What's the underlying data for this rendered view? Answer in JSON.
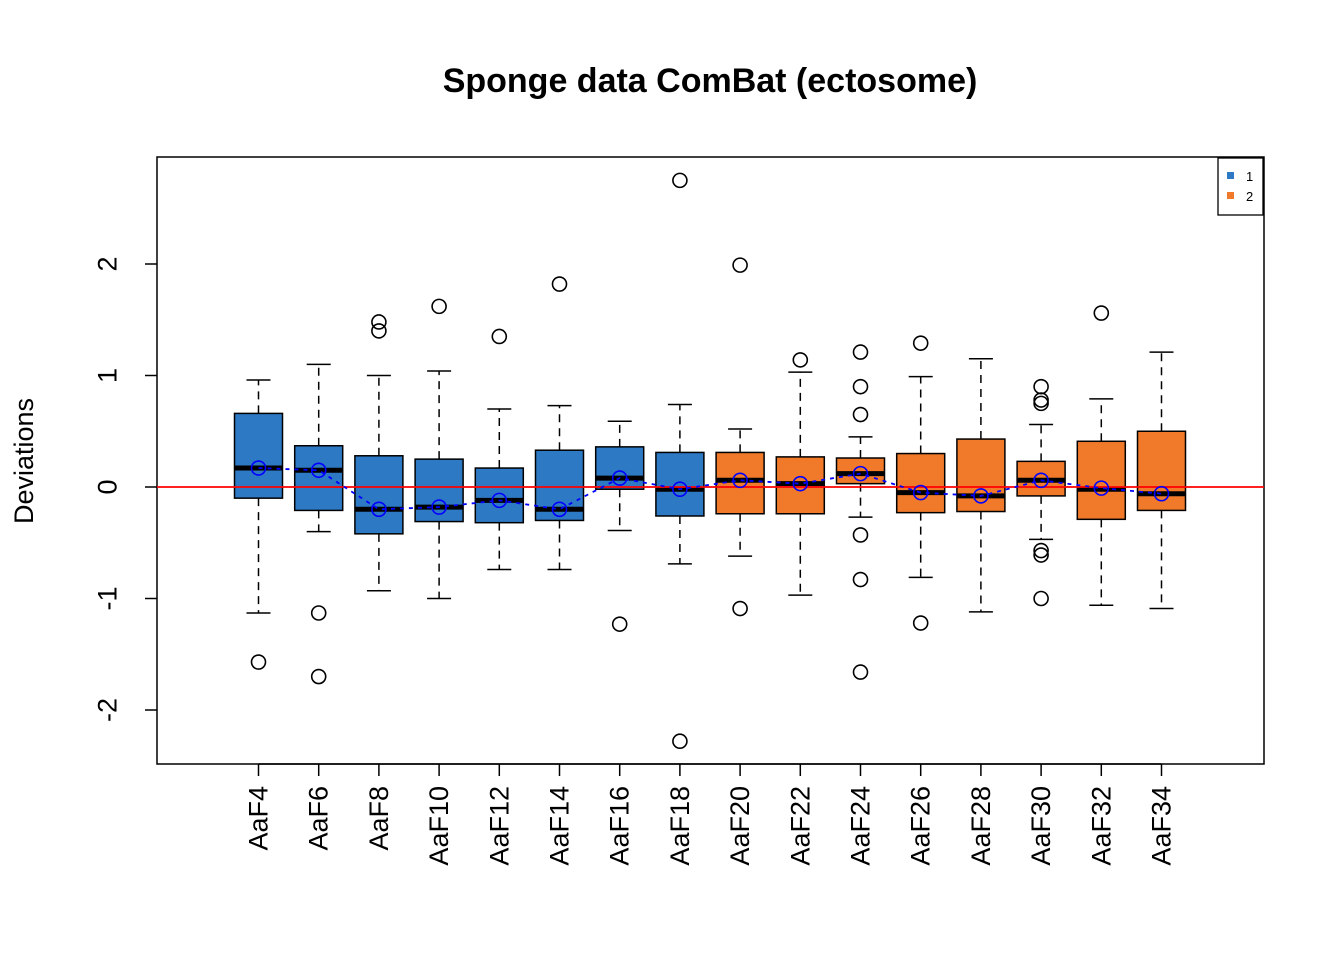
{
  "chart_data": {
    "type": "box",
    "title": "Sponge data ComBat (ectosome)",
    "xlabel": "",
    "ylabel": "Deviations",
    "ylim": [
      -2.5,
      2.9
    ],
    "yticks": [
      -2,
      -1,
      0,
      1,
      2
    ],
    "ytick_labels": [
      "-2",
      "-1",
      "0",
      "1",
      "2"
    ],
    "reference_line": {
      "y": 0,
      "color": "#ff0000"
    },
    "mean_line_color": "#0000ff",
    "legend": {
      "position": "top-right",
      "entries": [
        {
          "label": "1",
          "color": "#2e79c4"
        },
        {
          "label": "2",
          "color": "#f07a2a"
        }
      ]
    },
    "categories": [
      "AaF4",
      "AaF6",
      "AaF8",
      "AaF10",
      "AaF12",
      "AaF14",
      "AaF16",
      "AaF18",
      "AaF20",
      "AaF22",
      "AaF24",
      "AaF26",
      "AaF28",
      "AaF30",
      "AaF32",
      "AaF34"
    ],
    "boxes": [
      {
        "group": 1,
        "whisker_low": -1.13,
        "q1": -0.1,
        "median": 0.17,
        "q3": 0.66,
        "whisker_high": 0.96,
        "mean": 0.17,
        "outliers": [
          -1.57
        ]
      },
      {
        "group": 1,
        "whisker_low": -0.4,
        "q1": -0.21,
        "median": 0.15,
        "q3": 0.37,
        "whisker_high": 1.1,
        "mean": 0.15,
        "outliers": [
          -1.13,
          -1.7
        ]
      },
      {
        "group": 1,
        "whisker_low": -0.93,
        "q1": -0.42,
        "median": -0.2,
        "q3": 0.28,
        "whisker_high": 1.0,
        "mean": -0.2,
        "outliers": [
          1.48,
          1.4
        ]
      },
      {
        "group": 1,
        "whisker_low": -1.0,
        "q1": -0.31,
        "median": -0.18,
        "q3": 0.25,
        "whisker_high": 1.04,
        "mean": -0.18,
        "outliers": [
          1.62
        ]
      },
      {
        "group": 1,
        "whisker_low": -0.74,
        "q1": -0.32,
        "median": -0.12,
        "q3": 0.17,
        "whisker_high": 0.7,
        "mean": -0.12,
        "outliers": [
          1.35
        ]
      },
      {
        "group": 1,
        "whisker_low": -0.74,
        "q1": -0.3,
        "median": -0.2,
        "q3": 0.33,
        "whisker_high": 0.73,
        "mean": -0.2,
        "outliers": [
          1.82
        ]
      },
      {
        "group": 1,
        "whisker_low": -0.39,
        "q1": -0.02,
        "median": 0.08,
        "q3": 0.36,
        "whisker_high": 0.59,
        "mean": 0.08,
        "outliers": [
          -1.23
        ]
      },
      {
        "group": 1,
        "whisker_low": -0.69,
        "q1": -0.26,
        "median": -0.02,
        "q3": 0.31,
        "whisker_high": 0.74,
        "mean": -0.02,
        "outliers": [
          2.75,
          -2.28
        ]
      },
      {
        "group": 2,
        "whisker_low": -0.62,
        "q1": -0.24,
        "median": 0.06,
        "q3": 0.31,
        "whisker_high": 0.52,
        "mean": 0.06,
        "outliers": [
          1.99,
          -1.09
        ]
      },
      {
        "group": 2,
        "whisker_low": -0.97,
        "q1": -0.24,
        "median": 0.03,
        "q3": 0.27,
        "whisker_high": 1.03,
        "mean": 0.03,
        "outliers": [
          1.14
        ]
      },
      {
        "group": 2,
        "whisker_low": -0.27,
        "q1": 0.03,
        "median": 0.12,
        "q3": 0.26,
        "whisker_high": 0.45,
        "mean": 0.12,
        "outliers": [
          1.21,
          0.9,
          0.65,
          -0.43,
          -0.83,
          -1.66
        ]
      },
      {
        "group": 2,
        "whisker_low": -0.81,
        "q1": -0.23,
        "median": -0.05,
        "q3": 0.3,
        "whisker_high": 0.99,
        "mean": -0.05,
        "outliers": [
          1.29,
          -1.22
        ]
      },
      {
        "group": 2,
        "whisker_low": -1.12,
        "q1": -0.22,
        "median": -0.08,
        "q3": 0.43,
        "whisker_high": 1.15,
        "mean": -0.08,
        "outliers": []
      },
      {
        "group": 2,
        "whisker_low": -0.47,
        "q1": -0.08,
        "median": 0.06,
        "q3": 0.23,
        "whisker_high": 0.56,
        "mean": 0.06,
        "outliers": [
          0.9,
          0.78,
          0.75,
          -0.57,
          -0.61,
          -1.0
        ]
      },
      {
        "group": 2,
        "whisker_low": -1.06,
        "q1": -0.29,
        "median": -0.02,
        "q3": 0.41,
        "whisker_high": 0.79,
        "mean": -0.01,
        "outliers": [
          1.56
        ]
      },
      {
        "group": 2,
        "whisker_low": -1.09,
        "q1": -0.21,
        "median": -0.06,
        "q3": 0.5,
        "whisker_high": 1.21,
        "mean": -0.06,
        "outliers": []
      }
    ]
  }
}
